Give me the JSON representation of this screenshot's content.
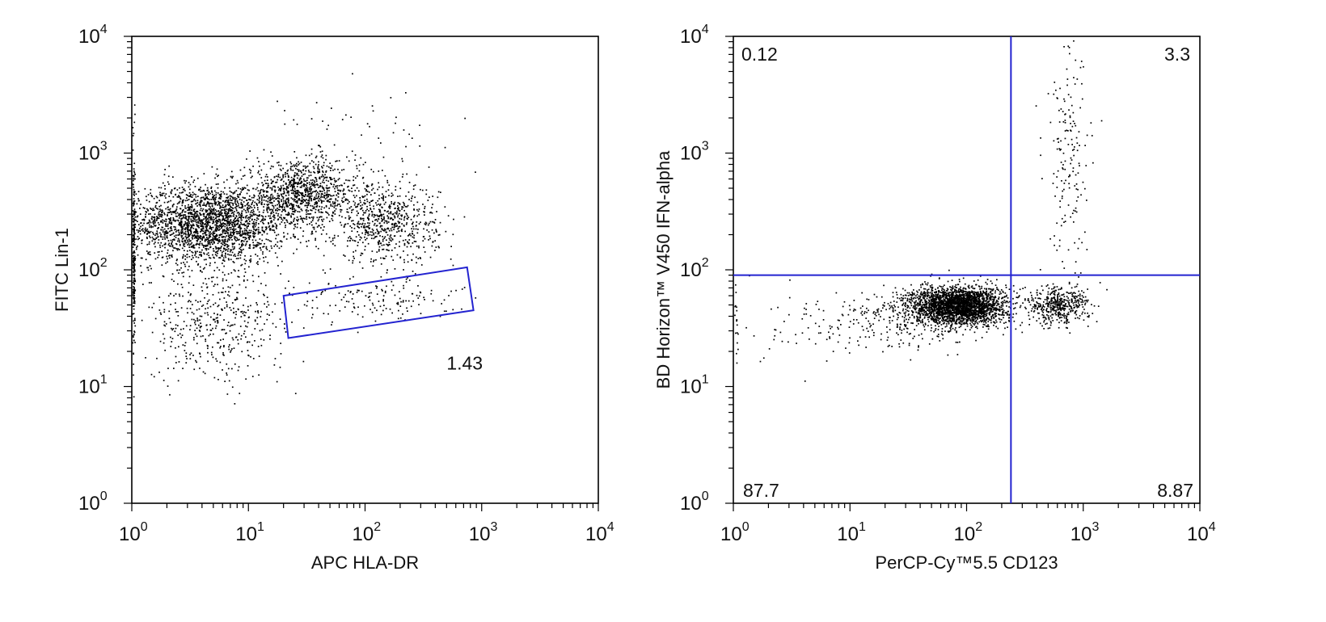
{
  "chart_data": [
    {
      "type": "scatter",
      "xscale": "log",
      "yscale": "log",
      "xlim": [
        1,
        10000
      ],
      "ylim": [
        1,
        10000
      ],
      "xlabel": "APC HLA-DR",
      "ylabel": "FITC Lin-1",
      "grid": false,
      "tick_labels": [
        "10^0",
        "10^1",
        "10^2",
        "10^3",
        "10^4"
      ],
      "clusters": [
        {
          "x": 4.5,
          "y": 250,
          "spread_x": 0.33,
          "spread_y": 0.17,
          "count": 2300
        },
        {
          "x": 28,
          "y": 450,
          "spread_x": 0.24,
          "spread_y": 0.13,
          "count": 900
        },
        {
          "x": 150,
          "y": 250,
          "spread_x": 0.22,
          "spread_y": 0.17,
          "count": 650
        },
        {
          "x": 5,
          "y": 35,
          "spread_x": 0.3,
          "spread_y": 0.24,
          "count": 450
        },
        {
          "x": 60,
          "y": 600,
          "spread_x": 0.5,
          "spread_y": 0.35,
          "count": 200
        },
        {
          "x": 120,
          "y": 55,
          "spread_x": 0.35,
          "spread_y": 0.1,
          "count": 140
        },
        {
          "x": 1.03,
          "y": 150,
          "spread_x": 0.005,
          "spread_y": 0.45,
          "count": 220
        }
      ],
      "gate": {
        "shape": "polygon",
        "vertices": [
          [
            20,
            60
          ],
          [
            750,
            105
          ],
          [
            850,
            45
          ],
          [
            22,
            26
          ]
        ],
        "label": "1.43",
        "label_at": [
          500,
          14
        ]
      }
    },
    {
      "type": "scatter",
      "xscale": "log",
      "yscale": "log",
      "xlim": [
        1,
        10000
      ],
      "ylim": [
        1,
        10000
      ],
      "xlabel": "PerCP-Cy™5.5 CD123",
      "ylabel": "BD Horizon™ V450 IFN-alpha",
      "grid": false,
      "tick_labels": [
        "10^0",
        "10^1",
        "10^2",
        "10^3",
        "10^4"
      ],
      "clusters": [
        {
          "x": 85,
          "y": 50,
          "spread_x": 0.2,
          "spread_y": 0.08,
          "count": 2600
        },
        {
          "x": 35,
          "y": 38,
          "spread_x": 0.35,
          "spread_y": 0.12,
          "count": 300
        },
        {
          "x": 600,
          "y": 50,
          "spread_x": 0.13,
          "spread_y": 0.08,
          "count": 450
        },
        {
          "x": 750,
          "y": 800,
          "spread_x": 0.09,
          "spread_y": 0.5,
          "count": 170
        },
        {
          "x": 6,
          "y": 30,
          "spread_x": 0.3,
          "spread_y": 0.15,
          "count": 60
        },
        {
          "x": 1.05,
          "y": 35,
          "spread_x": 0.01,
          "spread_y": 0.2,
          "count": 20
        }
      ],
      "quadrant_split": {
        "x": 240,
        "y": 90
      },
      "quadrants": {
        "upper_left": "0.12",
        "upper_right": "3.3",
        "lower_left": "87.7",
        "lower_right": "8.87"
      }
    }
  ]
}
